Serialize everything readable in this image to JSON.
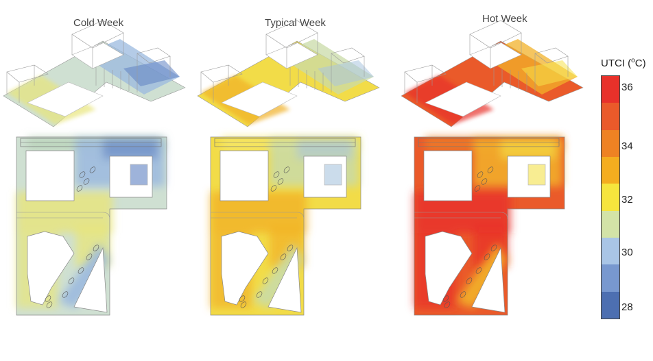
{
  "figure": {
    "panels": [
      {
        "title": "Cold Week",
        "scenario": "cold"
      },
      {
        "title": "Typical Week",
        "scenario": "typical"
      },
      {
        "title": "Hot Week",
        "scenario": "hot"
      }
    ],
    "legend": {
      "title_prefix": "UTCI (",
      "title_sup": "o",
      "title_suffix": "C)",
      "tick_labels": [
        "36",
        "34",
        "32",
        "30",
        "28"
      ],
      "colors_top_to_bottom": [
        "#e8312a",
        "#ea5a2a",
        "#ee8223",
        "#f4ad1f",
        "#f6e53d",
        "#d3e3a7",
        "#a9c5e6",
        "#7898cf",
        "#4d6fb1"
      ]
    },
    "palettes": {
      "cold": {
        "base": "#cfe0d2",
        "warm": "#e8e57a",
        "cool": "#9bb9df",
        "cold": "#5f82c2",
        "edge": "#b9d3b9"
      },
      "typical": {
        "base": "#f2dc48",
        "warm": "#f1b126",
        "cool": "#c9dba8",
        "cold": "#a9c5de",
        "edge": "#f6e76a"
      },
      "hot": {
        "base": "#ea5a2a",
        "warm": "#e8312a",
        "cool": "#f2b22a",
        "cold": "#f5e24a",
        "edge": "#ee7e25"
      }
    }
  }
}
